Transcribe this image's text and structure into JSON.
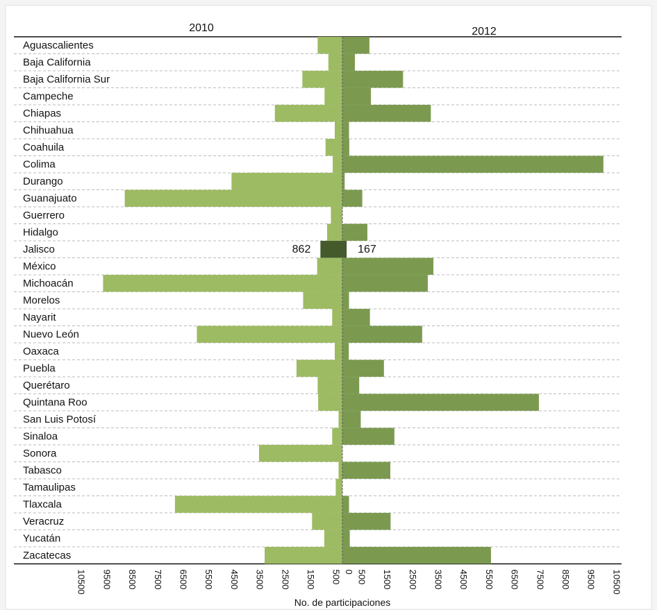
{
  "chart_data": {
    "type": "bar",
    "orientation": "horizontal-butterfly",
    "categories": [
      "Aguascalientes",
      "Baja California",
      "Baja California Sur",
      "Campeche",
      "Chiapas",
      "Chihuahua",
      "Coahuila",
      "Colima",
      "Durango",
      "Guanajuato",
      "Guerrero",
      "Hidalgo",
      "Jalisco",
      "México",
      "Michoacán",
      "Morelos",
      "Nayarit",
      "Nuevo León",
      "Oaxaca",
      "Puebla",
      "Querétaro",
      "Quintana Roo",
      "San Luis Potosí",
      "Sinaloa",
      "Sonora",
      "Tabasco",
      "Tamaulipas",
      "Tlaxcala",
      "Veracruz",
      "Yucatán",
      "Zacatecas"
    ],
    "series": [
      {
        "name": "2010",
        "side": "left",
        "values": [
          970,
          550,
          1570,
          700,
          2650,
          300,
          660,
          380,
          4350,
          8540,
          450,
          600,
          862,
          990,
          9390,
          1540,
          400,
          5710,
          300,
          1800,
          970,
          950,
          150,
          400,
          3270,
          150,
          260,
          6570,
          1190,
          710,
          3050
        ]
      },
      {
        "name": "2012",
        "side": "right",
        "values": [
          1060,
          490,
          2380,
          1120,
          3470,
          260,
          270,
          10240,
          90,
          780,
          0,
          980,
          167,
          3570,
          3350,
          260,
          1080,
          3130,
          250,
          1630,
          660,
          7710,
          720,
          2040,
          0,
          1880,
          0,
          260,
          1890,
          290,
          5830
        ]
      }
    ],
    "highlight": {
      "category": "Jalisco",
      "left_label": "862",
      "right_label": "167"
    },
    "ticks": [
      "10500",
      "9500",
      "8500",
      "7500",
      "6500",
      "5500",
      "4500",
      "3500",
      "2500",
      "1500",
      "500",
      "0",
      "500",
      "1500",
      "2500",
      "3500",
      "4500",
      "5500",
      "6500",
      "7500",
      "8500",
      "9500",
      "10500"
    ],
    "tick_values": [
      -10500,
      -9500,
      -8500,
      -7500,
      -6500,
      -5500,
      -4500,
      -3500,
      -2500,
      -1500,
      -500,
      0,
      500,
      1500,
      2500,
      3500,
      4500,
      5500,
      6500,
      7500,
      8500,
      9500,
      10500
    ],
    "xlim": [
      -10500,
      10500
    ],
    "xlabel": "No. de participaciones",
    "left_title": "2010",
    "right_title": "2012",
    "colors": {
      "left": "#9dbb63",
      "right": "#7b9a50",
      "highlight": "#445a2b",
      "grid": "#bbbbbb",
      "center": "#555555"
    }
  }
}
